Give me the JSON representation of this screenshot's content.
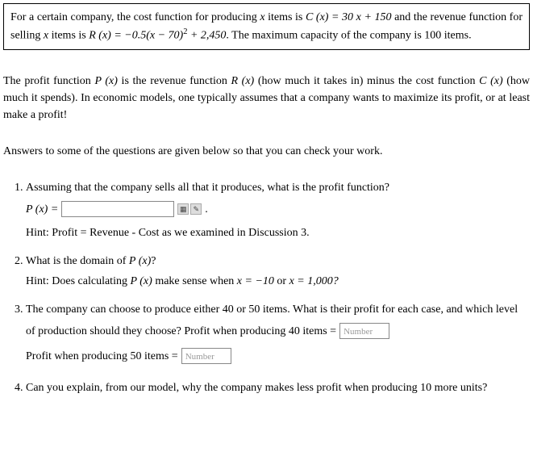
{
  "box": {
    "text_parts": {
      "p1a": "For a certain company, the cost function for producing ",
      "var_x1": "x",
      "p1b": " items is ",
      "c_expr": "C (x) = 30 x  +  150",
      "p1c": " and the revenue function for selling ",
      "var_x2": "x",
      "p1d": " items is ",
      "r_expr_open": "R (x) = −0.5(x − 70)",
      "r_exp_sup": "2",
      "r_expr_close": " + 2,450",
      "p1e": ". The maximum capacity of the company is 100 items."
    }
  },
  "profit_para": {
    "p_label": "P (x)",
    "r_label": "R (x)",
    "c_label": "C (x)",
    "a": "The profit function ",
    "b": " is the revenue function ",
    "c": " (how much it takes in)  minus the cost function ",
    "d": " (how much it spends). In economic models, one typically assumes that a company wants to maximize its profit, or at least make a profit!"
  },
  "answers_lead": "Answers to some of the questions are given below so that you can check your work.",
  "q1": {
    "text": "Assuming that the company sells all that it produces, what is the profit function?",
    "px": "P (x) =",
    "period": ".",
    "hint": "Hint: Profit = Revenue - Cost as we examined in Discussion 3."
  },
  "q2": {
    "a": "What is the domain of ",
    "px": "P (x)",
    "b": "?",
    "hint_a": "Hint: Does calculating ",
    "hint_px": "P (x)",
    "hint_b": " make sense when ",
    "x1": "x = −10",
    "or": " or ",
    "x2": "x = 1,000?"
  },
  "q3": {
    "text": "The company can choose to produce either 40 or 50 items. What is their profit for each case, and which level of production should they choose?",
    "r40": "Profit when producing 40 items =",
    "r50": "Profit when producing 50 items =",
    "ph": "Number"
  },
  "q4": {
    "text": "Can you explain, from our model, why the company makes less profit when producing 10 more units?"
  }
}
